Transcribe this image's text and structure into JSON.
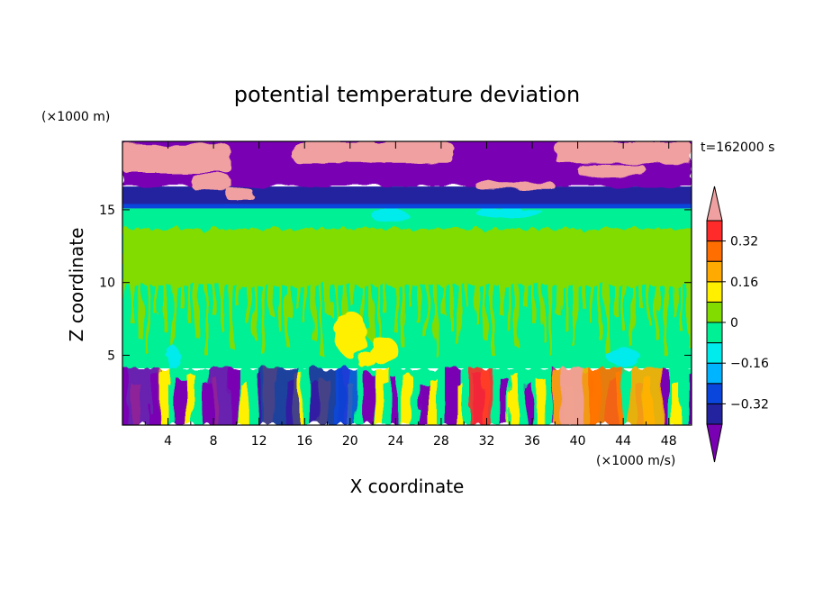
{
  "chart_data": {
    "type": "heatmap",
    "title": "potential temperature deviation",
    "xlabel": "X coordinate",
    "ylabel": "Z coordinate",
    "x_unit": "(×1000 m/s)",
    "y_unit": "(×1000 m)",
    "time_label": "t=162000 s",
    "xlim": [
      0,
      50
    ],
    "ylim": [
      0.2,
      19.7
    ],
    "x_ticks": [
      4,
      8,
      12,
      16,
      20,
      24,
      28,
      32,
      36,
      40,
      44,
      48
    ],
    "y_ticks": [
      5,
      10,
      15
    ],
    "colorbar": {
      "levels": [
        -0.4,
        -0.32,
        -0.24,
        -0.16,
        -0.08,
        0,
        0.08,
        0.16,
        0.24,
        0.32,
        0.4
      ],
      "labels": [
        "0.32",
        "0.16",
        "0",
        "−0.16",
        "−0.32"
      ],
      "label_values": [
        0.32,
        0.16,
        0,
        -0.16,
        -0.32
      ],
      "colors": [
        "#7a00b4",
        "#2323a0",
        "#0a46dc",
        "#00b4ff",
        "#00ebeb",
        "#00f096",
        "#82dc00",
        "#fff000",
        "#ffaa00",
        "#ff6e00",
        "#ff2a2a",
        "#f0a0a0"
      ]
    },
    "regions": [
      {
        "x": [
          0,
          50
        ],
        "z": [
          4.1,
          15.1
        ],
        "value": 0.02,
        "desc": "green-cyan interior"
      },
      {
        "x": [
          0,
          50
        ],
        "z": [
          9.5,
          13.7
        ],
        "value": 0.06,
        "desc": "light-green band"
      },
      {
        "x": [
          0,
          50
        ],
        "z": [
          15.1,
          16.6
        ],
        "value": -0.34,
        "desc": "dark-blue tropopause band"
      },
      {
        "x": [
          0,
          50
        ],
        "z": [
          16.6,
          19.7
        ],
        "value": -0.4,
        "desc": "purple stratosphere"
      },
      {
        "x": [
          0,
          50
        ],
        "z": [
          0.2,
          4.1
        ],
        "value": 0.0,
        "desc": "turbulent boundary layer"
      }
    ]
  }
}
